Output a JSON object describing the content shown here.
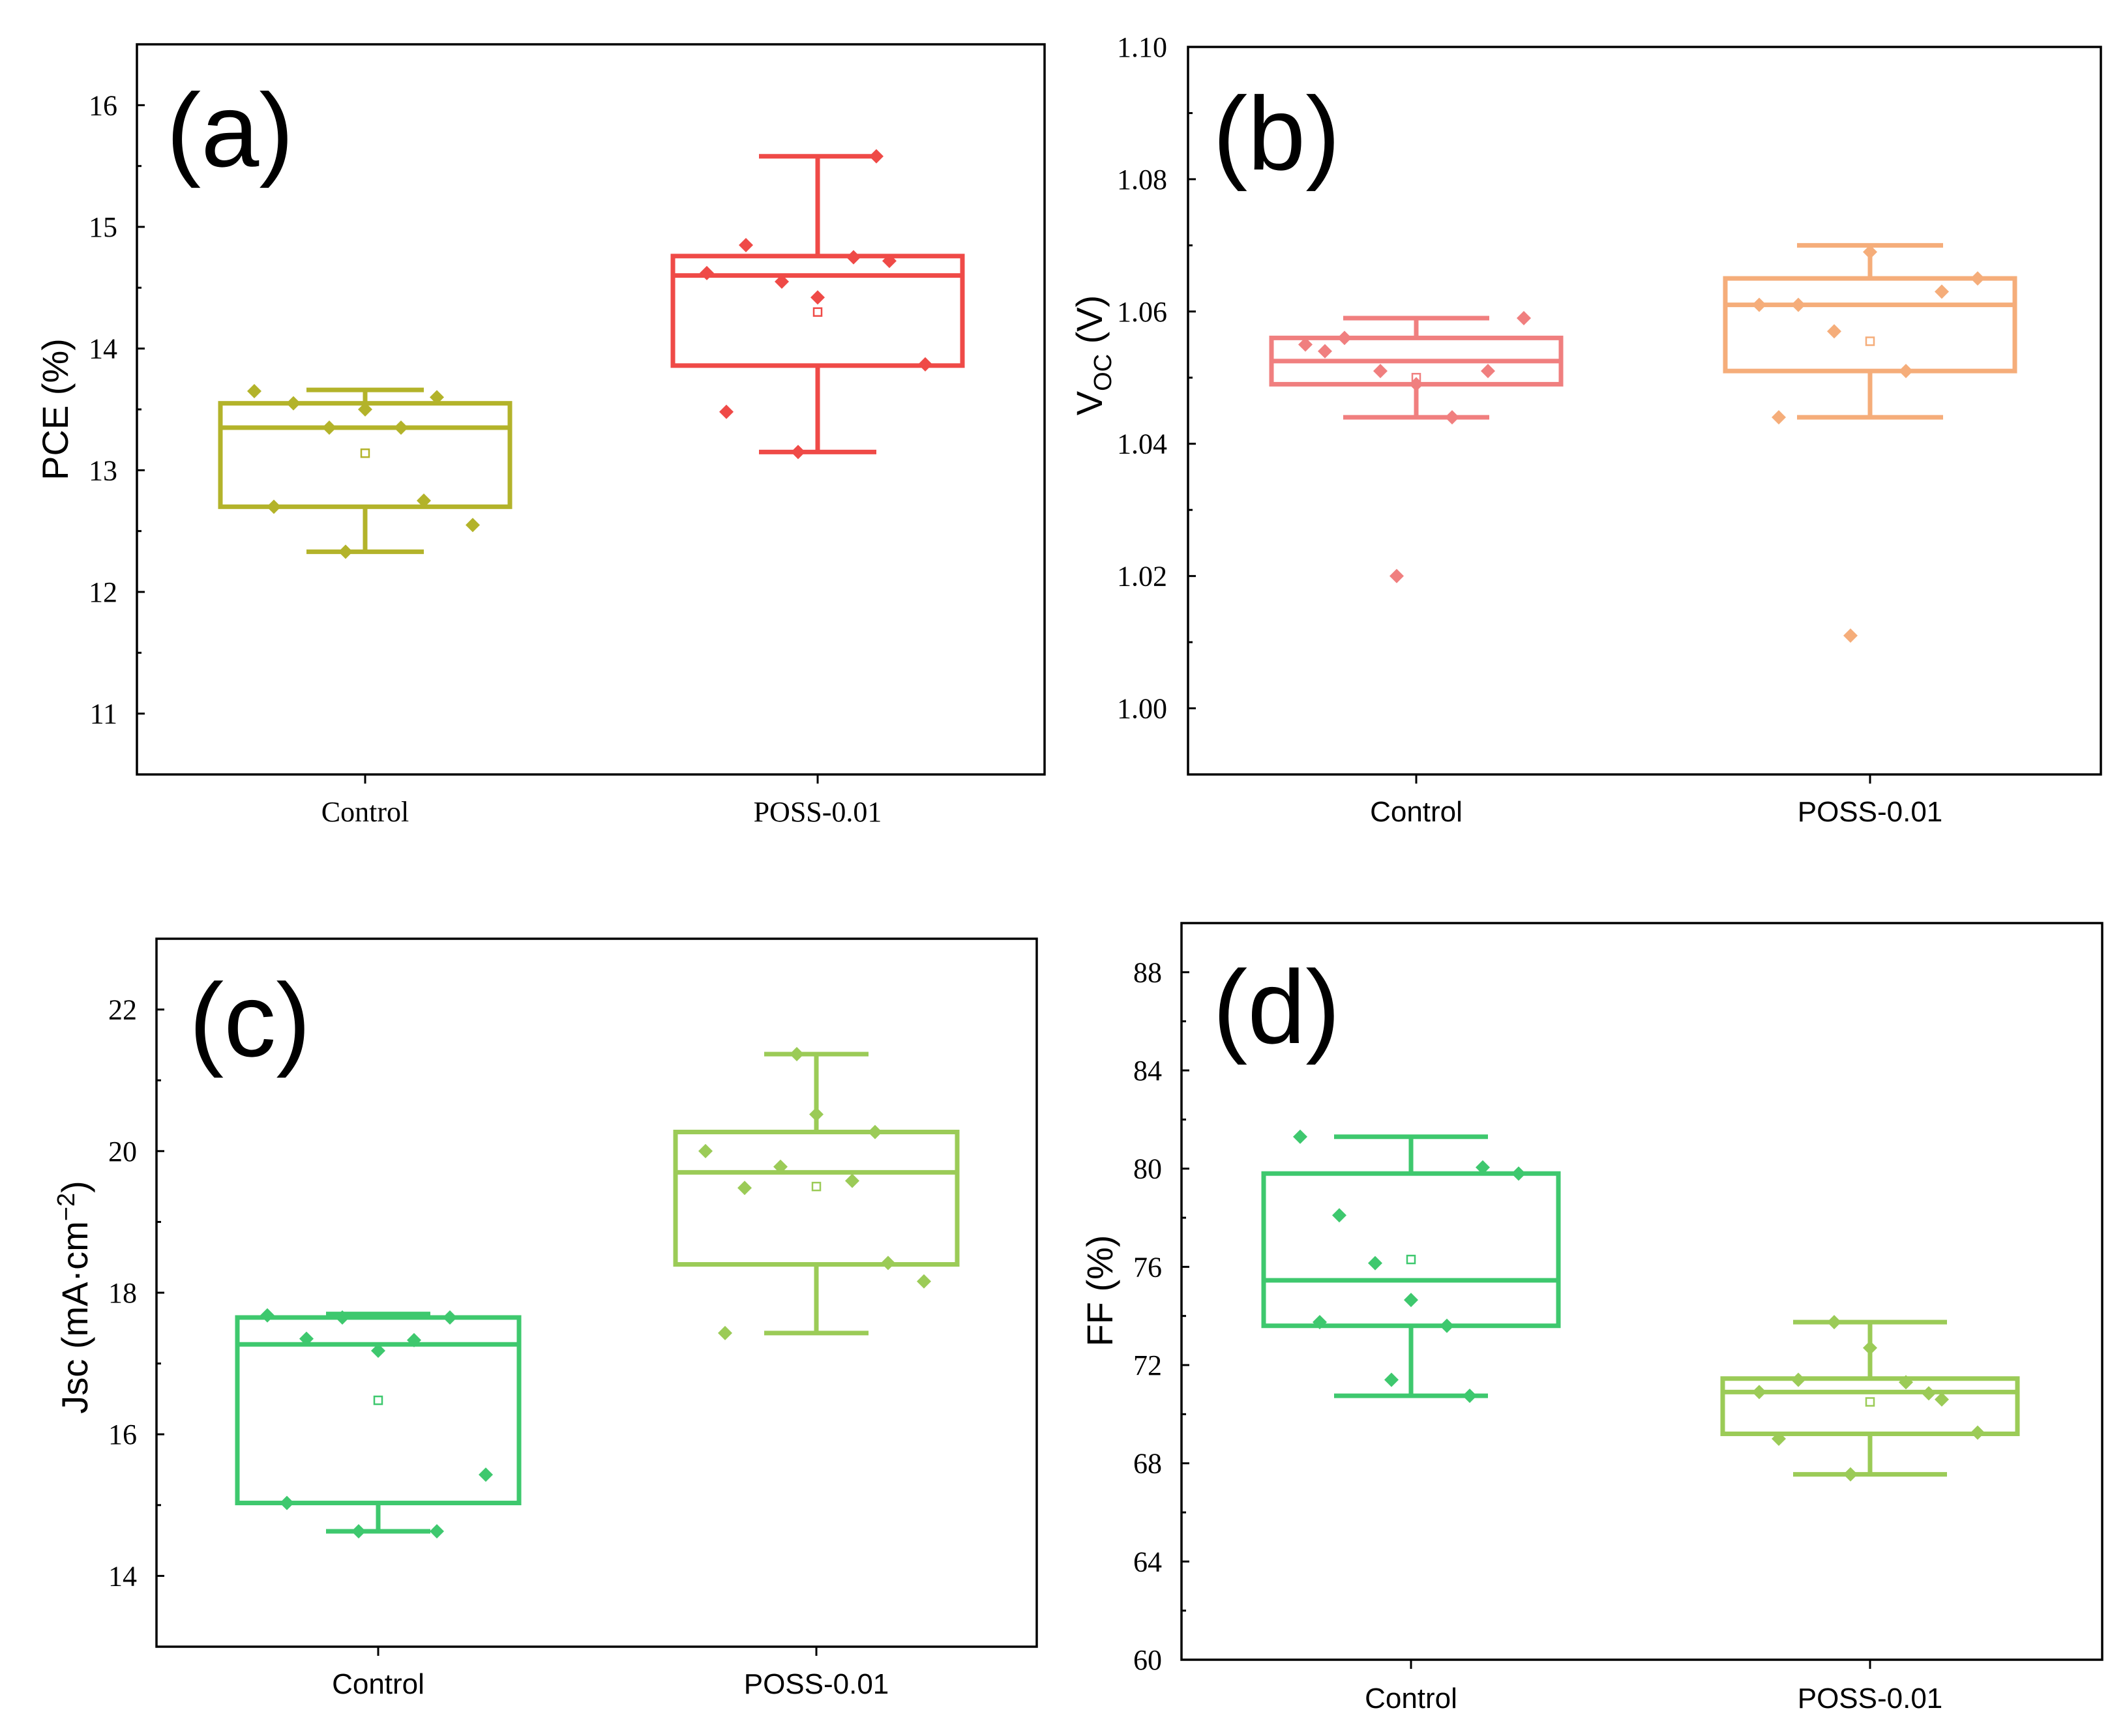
{
  "chart_data": [
    {
      "type": "box",
      "panel": "(a)",
      "ylabel": "PCE (%)",
      "ylim": [
        10.5,
        16.5
      ],
      "yticks": [
        11,
        12,
        13,
        14,
        15,
        16
      ],
      "tick_labels": [
        "11",
        "12",
        "13",
        "14",
        "15",
        "16"
      ],
      "categories": [
        "Control",
        "POSS-0.01"
      ],
      "colors": [
        "#b3b32a",
        "#ef4a47"
      ],
      "boxes": [
        {
          "name": "Control",
          "min": 12.33,
          "q1": 12.7,
          "median": 13.35,
          "q3": 13.55,
          "max": 13.66,
          "mean": 13.14,
          "points": [
            13.65,
            13.55,
            13.35,
            13.5,
            13.35,
            13.6,
            12.55,
            12.7,
            12.33,
            12.75
          ]
        },
        {
          "name": "POSS-0.01",
          "min": 13.15,
          "q1": 13.86,
          "median": 14.6,
          "q3": 14.76,
          "max": 15.58,
          "mean": 14.3,
          "points": [
            14.62,
            14.85,
            14.55,
            14.42,
            14.75,
            14.72,
            13.87,
            13.48,
            13.15,
            15.58
          ]
        }
      ]
    },
    {
      "type": "box",
      "panel": "(b)",
      "ylabel_main": "V",
      "ylabel_sub": "OC",
      "ylabel_unit": " (V)",
      "ylim": [
        0.99,
        1.1
      ],
      "yticks": [
        1.0,
        1.02,
        1.04,
        1.06,
        1.08,
        1.1
      ],
      "tick_labels": [
        "1.00",
        "1.02",
        "1.04",
        "1.06",
        "1.08",
        "1.10"
      ],
      "categories": [
        "Control",
        "POSS-0.01"
      ],
      "colors": [
        "#f07f7f",
        "#f5ad7a"
      ],
      "boxes": [
        {
          "name": "Control",
          "min": 1.044,
          "q1": 1.049,
          "median": 1.0525,
          "q3": 1.056,
          "max": 1.059,
          "mean": 1.05,
          "points": [
            1.055,
            1.056,
            1.051,
            1.049,
            1.044,
            1.051,
            1.059,
            1.054,
            1.02
          ]
        },
        {
          "name": "POSS-0.01",
          "min": 1.044,
          "q1": 1.051,
          "median": 1.061,
          "q3": 1.065,
          "max": 1.07,
          "mean": 1.0555,
          "points": [
            1.061,
            1.061,
            1.057,
            1.069,
            1.051,
            1.063,
            1.065,
            1.044,
            1.011
          ]
        }
      ]
    },
    {
      "type": "box",
      "panel": "(c)",
      "ylabel": "Jsc (mA·cm",
      "ylabel_sup": "−2",
      "ylabel_end": ")",
      "ylim": [
        13,
        23
      ],
      "yticks": [
        14,
        16,
        18,
        20,
        22
      ],
      "tick_labels": [
        "14",
        "16",
        "18",
        "20",
        "22"
      ],
      "categories": [
        "Control",
        "POSS-0.01"
      ],
      "colors": [
        "#3ec86e",
        "#9bcb57"
      ],
      "boxes": [
        {
          "name": "Control",
          "min": 14.63,
          "q1": 15.03,
          "median": 17.27,
          "q3": 17.65,
          "max": 17.7,
          "mean": 16.48,
          "points": [
            17.68,
            17.35,
            17.65,
            17.18,
            17.33,
            17.65,
            15.43,
            15.03,
            14.63,
            14.63
          ]
        },
        {
          "name": "POSS-0.01",
          "min": 17.43,
          "q1": 18.4,
          "median": 19.7,
          "q3": 20.27,
          "max": 21.37,
          "mean": 19.5,
          "points": [
            20.0,
            19.48,
            19.78,
            20.52,
            19.58,
            18.42,
            18.16,
            17.43,
            21.37,
            20.27
          ]
        }
      ]
    },
    {
      "type": "box",
      "panel": "(d)",
      "ylabel": "FF (%)",
      "ylim": [
        60,
        90
      ],
      "yticks": [
        60,
        64,
        68,
        72,
        76,
        80,
        84,
        88
      ],
      "tick_labels": [
        "60",
        "64",
        "68",
        "72",
        "76",
        "80",
        "84",
        "88"
      ],
      "categories": [
        "Control",
        "POSS-0.01"
      ],
      "colors": [
        "#3ec86e",
        "#9bcb57"
      ],
      "boxes": [
        {
          "name": "Control",
          "min": 70.75,
          "q1": 73.6,
          "median": 75.45,
          "q3": 79.8,
          "max": 81.3,
          "mean": 76.3,
          "points": [
            81.3,
            78.1,
            76.15,
            74.65,
            73.6,
            80.05,
            79.8,
            73.75,
            71.4,
            70.75
          ]
        },
        {
          "name": "POSS-0.01",
          "min": 67.55,
          "q1": 69.2,
          "median": 70.9,
          "q3": 71.45,
          "max": 73.75,
          "mean": 70.5,
          "points": [
            70.9,
            71.4,
            73.75,
            72.7,
            71.3,
            70.6,
            69.25,
            69.0,
            67.55,
            70.85
          ]
        }
      ]
    }
  ]
}
